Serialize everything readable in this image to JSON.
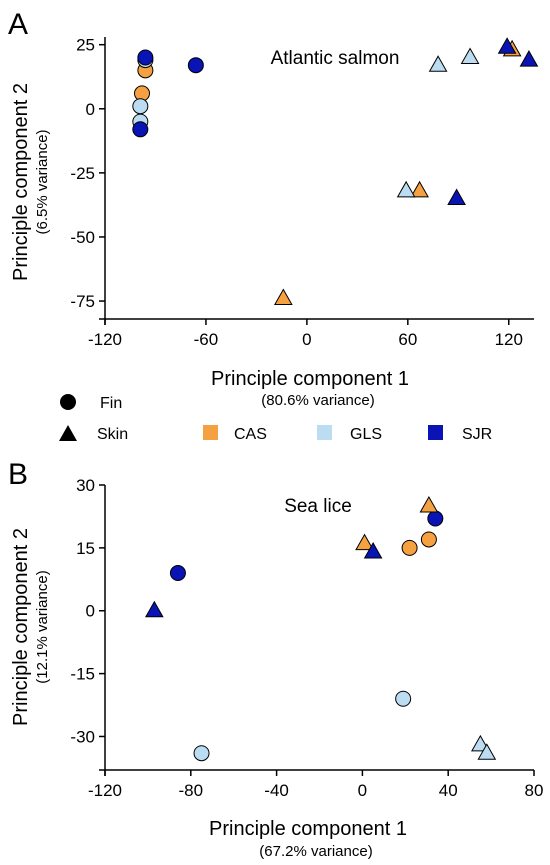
{
  "legend": {
    "shapes": [
      {
        "label": "Fin",
        "shape": "circle"
      },
      {
        "label": "Skin",
        "shape": "triangle"
      }
    ],
    "sites": [
      {
        "label": "CAS",
        "color": "#F5A142"
      },
      {
        "label": "GLS",
        "color": "#BCDCF2"
      },
      {
        "label": "SJR",
        "color": "#0A14B4"
      }
    ]
  },
  "chart_data": [
    {
      "panel": "A",
      "type": "scatter",
      "title": "Atlantic salmon",
      "xlabel": "Principle component 1",
      "xlabel_sub": "(80.6% variance)",
      "ylabel": "Principle component 2",
      "ylabel_sub": "(6.5% variance)",
      "xlim": [
        -120,
        135
      ],
      "ylim": [
        -82,
        28
      ],
      "xticks": [
        "-120",
        "-60",
        "0",
        "60",
        "120"
      ],
      "xtick_values": [
        -120,
        -60,
        0,
        60,
        120
      ],
      "yticks": [
        "25",
        "0",
        "-25",
        "-50",
        "-75"
      ],
      "ytick_values": [
        25,
        0,
        -25,
        -50,
        -75
      ],
      "points": [
        {
          "x": -98,
          "y": 6,
          "site": "CAS",
          "tissue": "Fin"
        },
        {
          "x": -96,
          "y": 15,
          "site": "CAS",
          "tissue": "Fin"
        },
        {
          "x": -99,
          "y": 1,
          "site": "GLS",
          "tissue": "Fin"
        },
        {
          "x": -99,
          "y": -5,
          "site": "GLS",
          "tissue": "Fin"
        },
        {
          "x": -96,
          "y": 19,
          "site": "GLS",
          "tissue": "Fin"
        },
        {
          "x": -99,
          "y": -8,
          "site": "SJR",
          "tissue": "Fin"
        },
        {
          "x": -96,
          "y": 20,
          "site": "SJR",
          "tissue": "Fin"
        },
        {
          "x": -66,
          "y": 17,
          "site": "SJR",
          "tissue": "Fin"
        },
        {
          "x": -14,
          "y": -74,
          "site": "CAS",
          "tissue": "Skin"
        },
        {
          "x": 67,
          "y": -32,
          "site": "CAS",
          "tissue": "Skin"
        },
        {
          "x": 122,
          "y": 23,
          "site": "CAS",
          "tissue": "Skin"
        },
        {
          "x": 59,
          "y": -32,
          "site": "GLS",
          "tissue": "Skin"
        },
        {
          "x": 78,
          "y": 17,
          "site": "GLS",
          "tissue": "Skin"
        },
        {
          "x": 97,
          "y": 20,
          "site": "GLS",
          "tissue": "Skin"
        },
        {
          "x": 89,
          "y": -35,
          "site": "SJR",
          "tissue": "Skin"
        },
        {
          "x": 119,
          "y": 24,
          "site": "SJR",
          "tissue": "Skin"
        },
        {
          "x": 132,
          "y": 19,
          "site": "SJR",
          "tissue": "Skin"
        }
      ]
    },
    {
      "panel": "B",
      "type": "scatter",
      "title": "Sea lice",
      "xlabel": "Principle component 1",
      "xlabel_sub": "(67.2% variance)",
      "ylabel": "Principle component 2",
      "ylabel_sub": "(12.1% variance)",
      "xlim": [
        -120,
        80
      ],
      "ylim": [
        -38,
        30
      ],
      "xticks": [
        "-120",
        "-80",
        "-40",
        "0",
        "40",
        "80"
      ],
      "xtick_values": [
        -120,
        -80,
        -40,
        0,
        40,
        80
      ],
      "yticks": [
        "30",
        "15",
        "0",
        "-15",
        "-30"
      ],
      "ytick_values": [
        30,
        15,
        0,
        -15,
        -30
      ],
      "points": [
        {
          "x": 22,
          "y": 15,
          "site": "CAS",
          "tissue": "Fin"
        },
        {
          "x": 31,
          "y": 17,
          "site": "CAS",
          "tissue": "Fin"
        },
        {
          "x": -75,
          "y": -34,
          "site": "GLS",
          "tissue": "Fin"
        },
        {
          "x": 19,
          "y": -21,
          "site": "GLS",
          "tissue": "Fin"
        },
        {
          "x": -86,
          "y": 9,
          "site": "SJR",
          "tissue": "Fin"
        },
        {
          "x": 34,
          "y": 22,
          "site": "SJR",
          "tissue": "Fin"
        },
        {
          "x": 1,
          "y": 16,
          "site": "CAS",
          "tissue": "Skin"
        },
        {
          "x": 31,
          "y": 25,
          "site": "CAS",
          "tissue": "Skin"
        },
        {
          "x": 55,
          "y": -32,
          "site": "GLS",
          "tissue": "Skin"
        },
        {
          "x": 58,
          "y": -34,
          "site": "GLS",
          "tissue": "Skin"
        },
        {
          "x": -97,
          "y": 0,
          "site": "SJR",
          "tissue": "Skin"
        },
        {
          "x": 5,
          "y": 14,
          "site": "SJR",
          "tissue": "Skin"
        }
      ]
    }
  ]
}
